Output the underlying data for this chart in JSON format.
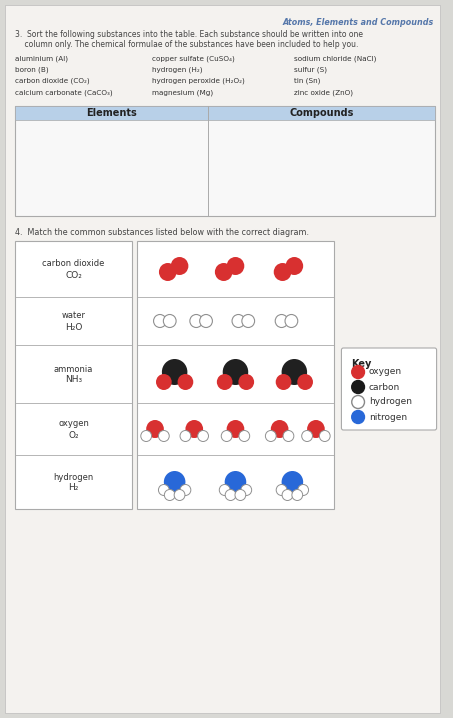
{
  "title": "Atoms, Elements and Compounds",
  "bg_color": "#d8d8d4",
  "q3_text_1": "3.  Sort the following substances into the table. Each substance should be written into one",
  "q3_text_2": "    column only. The chemical formulae of the substances have been included to help you.",
  "substances_col1": [
    "aluminium (Al)",
    "boron (B)",
    "carbon dioxide (CO₂)",
    "calcium carbonate (CaCO₃)"
  ],
  "substances_col2": [
    "copper sulfate (CuSO₄)",
    "hydrogen (H₂)",
    "hydrogen peroxide (H₂O₂)",
    "magnesium (Mg)"
  ],
  "substances_col3": [
    "sodium chloride (NaCl)",
    "sulfur (S)",
    "tin (Sn)",
    "zinc oxide (ZnO)"
  ],
  "table_headers": [
    "Elements",
    "Compounds"
  ],
  "header_bg": "#b8d0e8",
  "q4_text": "4.  Match the common substances listed below with the correct diagram.",
  "molecule_labels_line1": [
    "carbon dioxide",
    "water",
    "ammonia",
    "oxygen",
    "hydrogen"
  ],
  "molecule_labels_line2": [
    "CO₂",
    "H₂O",
    "NH₃",
    "O₂",
    "H₂"
  ],
  "key_items": [
    "oxygen",
    "carbon",
    "hydrogen",
    "nitrogen"
  ],
  "key_colors": [
    "#d83030",
    "#1a1a1a",
    "#ffffff",
    "#2868d8"
  ],
  "key_border_colors": [
    "#d83030",
    "#1a1a1a",
    "#888888",
    "#2868d8"
  ],
  "red": "#d83030",
  "black": "#202020",
  "white": "#ffffff",
  "blue": "#2868d8",
  "h_edge": "#909090"
}
